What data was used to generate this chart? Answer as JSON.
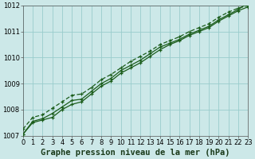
{
  "xlabel": "Graphe pression niveau de la mer (hPa)",
  "ylim": [
    1007,
    1012
  ],
  "xlim": [
    0,
    23
  ],
  "yticks": [
    1007,
    1008,
    1009,
    1010,
    1011,
    1012
  ],
  "xticks": [
    0,
    1,
    2,
    3,
    4,
    5,
    6,
    7,
    8,
    9,
    10,
    11,
    12,
    13,
    14,
    15,
    16,
    17,
    18,
    19,
    20,
    21,
    22,
    23
  ],
  "bg_color": "#cce8e8",
  "grid_color": "#99cccc",
  "line_color": "#1a5c1a",
  "line1_x": [
    0,
    1,
    2,
    3,
    4,
    5,
    6,
    7,
    8,
    9,
    10,
    11,
    12,
    13,
    14,
    15,
    16,
    17,
    18,
    19,
    20,
    21,
    22,
    23
  ],
  "line1_y": [
    1007.05,
    1007.5,
    1007.6,
    1007.7,
    1008.0,
    1008.2,
    1008.3,
    1008.6,
    1008.9,
    1009.1,
    1009.4,
    1009.6,
    1009.8,
    1010.05,
    1010.3,
    1010.5,
    1010.65,
    1010.85,
    1011.0,
    1011.15,
    1011.4,
    1011.6,
    1011.8,
    1011.95
  ],
  "line2_x": [
    0,
    1,
    2,
    3,
    4,
    5,
    6,
    7,
    8,
    9,
    10,
    11,
    12,
    13,
    14,
    15,
    16,
    17,
    18,
    19,
    20,
    21,
    22,
    23
  ],
  "line2_y": [
    1007.25,
    1007.7,
    1007.8,
    1008.05,
    1008.3,
    1008.55,
    1008.6,
    1008.85,
    1009.15,
    1009.35,
    1009.6,
    1009.85,
    1010.05,
    1010.25,
    1010.5,
    1010.65,
    1010.8,
    1011.0,
    1011.15,
    1011.3,
    1011.55,
    1011.75,
    1011.9,
    1012.0
  ],
  "line3_x": [
    0,
    1,
    2,
    3,
    4,
    5,
    6,
    7,
    8,
    9,
    10,
    11,
    12,
    13,
    14,
    15,
    16,
    17,
    18,
    19,
    20,
    21,
    22,
    23
  ],
  "line3_y": [
    1007.05,
    1007.55,
    1007.65,
    1007.85,
    1008.1,
    1008.35,
    1008.4,
    1008.7,
    1009.0,
    1009.2,
    1009.5,
    1009.7,
    1009.9,
    1010.15,
    1010.4,
    1010.55,
    1010.7,
    1010.9,
    1011.05,
    1011.2,
    1011.45,
    1011.65,
    1011.85,
    1012.1
  ],
  "tick_fontsize": 6.0,
  "label_fontsize": 7.5
}
